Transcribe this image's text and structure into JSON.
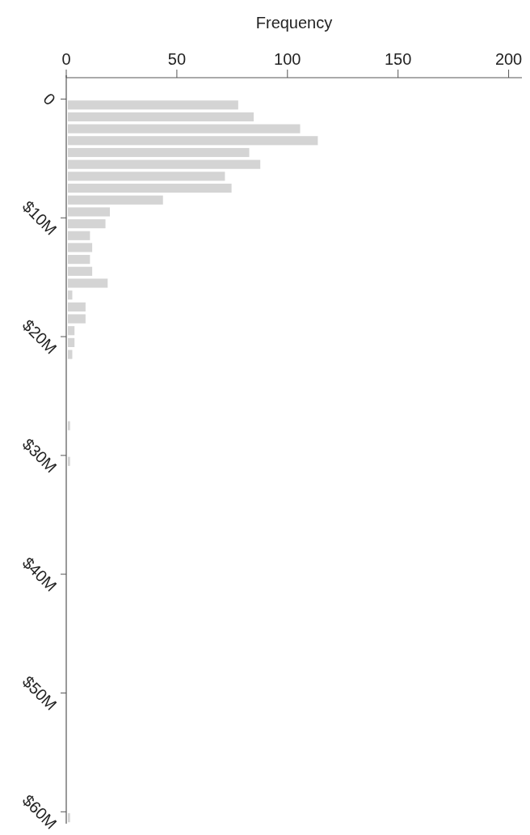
{
  "chart_data": {
    "type": "histogram",
    "orientation": "horizontal",
    "xlabel": "Frequency",
    "bins": [
      0,
      1,
      2,
      3,
      4,
      5,
      6,
      7,
      8,
      9,
      10,
      11,
      12,
      13,
      14,
      15,
      16,
      17,
      18,
      19,
      20,
      21,
      22,
      23,
      24,
      25,
      26,
      27,
      28,
      29,
      30,
      31,
      32,
      33,
      34,
      35,
      36,
      37,
      38,
      39,
      40,
      41,
      42,
      43,
      44,
      45,
      46,
      47,
      48,
      49,
      50,
      51,
      52,
      53,
      54,
      55,
      56,
      57,
      58,
      59,
      60,
      61
    ],
    "values": [
      77,
      84,
      105,
      113,
      82,
      87,
      71,
      74,
      43,
      19,
      17,
      10,
      11,
      10,
      11,
      18,
      2,
      8,
      8,
      3,
      3,
      2,
      0,
      0,
      0,
      0,
      0,
      1,
      0,
      0,
      1,
      0,
      0,
      0,
      0,
      0,
      0,
      0,
      0,
      0,
      0,
      0,
      0,
      0,
      0,
      0,
      0,
      0,
      0,
      0,
      0,
      0,
      0,
      0,
      0,
      0,
      0,
      0,
      0,
      0,
      1
    ],
    "color": "#d4d4d4",
    "xlim": [
      0,
      206
    ],
    "xticks": [
      0,
      50,
      100,
      150,
      200
    ],
    "ylim": [
      61,
      -1.8
    ],
    "yticks": [
      {
        "value": 0,
        "label": "0"
      },
      {
        "value": 10,
        "label": "$10M"
      },
      {
        "value": 20,
        "label": "$20M"
      },
      {
        "value": 30,
        "label": "$30M"
      },
      {
        "value": 40,
        "label": "$40M"
      },
      {
        "value": 50,
        "label": "$50M"
      },
      {
        "value": 60,
        "label": "$60M"
      }
    ],
    "grid": false
  }
}
